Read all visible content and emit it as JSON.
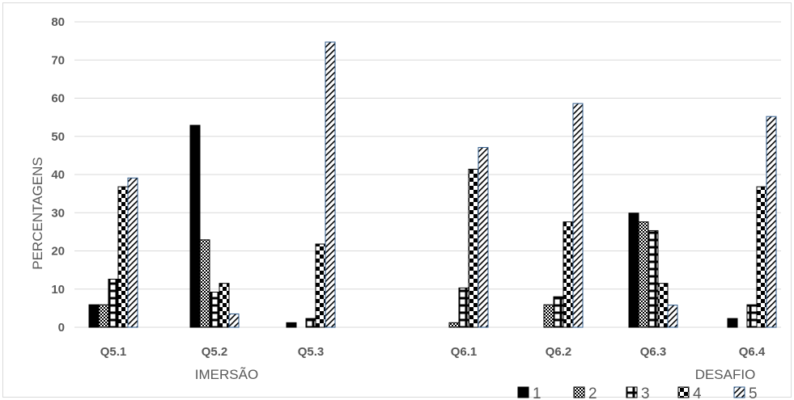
{
  "chart_data": {
    "type": "bar",
    "title": "",
    "xlabel": "",
    "ylabel": "PERCENTAGENS",
    "ylim": [
      0,
      80
    ],
    "yticks": [
      0,
      10,
      20,
      30,
      40,
      50,
      60,
      70,
      80
    ],
    "grid": true,
    "legend_position": "bottom-right",
    "categories": [
      "Q5.1",
      "Q5.2",
      "Q5.3",
      "Q6.1",
      "Q6.2",
      "Q6.3",
      "Q6.4"
    ],
    "groups": [
      {
        "label": "IMERSÃO",
        "categories": [
          "Q5.1",
          "Q5.2",
          "Q5.3"
        ]
      },
      {
        "label": "DESAFIO",
        "categories": [
          "Q6.1",
          "Q6.2",
          "Q6.3",
          "Q6.4"
        ]
      }
    ],
    "series": [
      {
        "name": "1",
        "pattern": "solid-black",
        "values": [
          5.9,
          52.9,
          1.2,
          0,
          0,
          29.9,
          2.3
        ]
      },
      {
        "name": "2",
        "pattern": "small-checker",
        "values": [
          5.9,
          22.9,
          0,
          1.2,
          5.9,
          27.6,
          0
        ]
      },
      {
        "name": "3",
        "pattern": "outlined-box",
        "values": [
          12.6,
          9.2,
          2.3,
          10.3,
          8.0,
          25.3,
          5.9
        ]
      },
      {
        "name": "4",
        "pattern": "large-checker",
        "values": [
          36.8,
          11.5,
          21.8,
          41.4,
          27.6,
          11.5,
          36.8
        ]
      },
      {
        "name": "5",
        "pattern": "diagonal-hatch",
        "values": [
          39.1,
          3.5,
          74.7,
          47.1,
          58.6,
          5.8,
          55.2
        ]
      }
    ],
    "colors": {
      "bar": "#000000",
      "hatch_outline": "#2e5a8a",
      "grid": "#d9d9d9",
      "text": "#595959"
    }
  }
}
